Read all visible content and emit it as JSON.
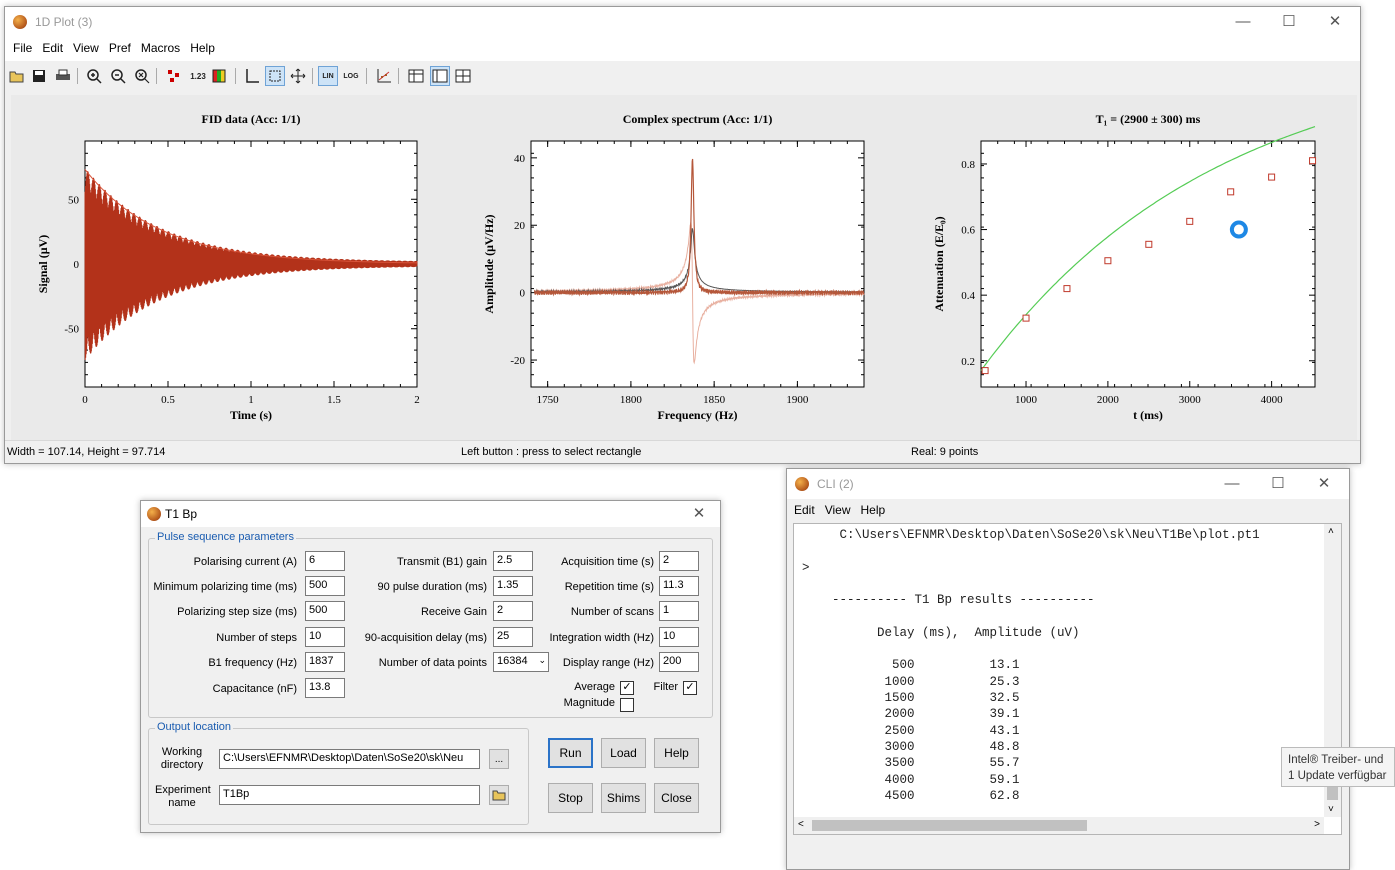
{
  "plot_window": {
    "title": "1D Plot (3)",
    "menu": [
      "File",
      "Edit",
      "View",
      "Pref",
      "Macros",
      "Help"
    ],
    "toolbar_icons": [
      "open-folder-icon",
      "save-icon",
      "print-icon",
      "zoom-in-icon",
      "zoom-out-icon",
      "zoom-reset-icon",
      "data-points-icon",
      "number-format-icon",
      "colorbar-icon",
      "axes-icon",
      "select-rectangle-icon",
      "move-cursor-icon",
      "lin-scale-icon",
      "log-scale-icon",
      "fit-icon",
      "single-plot-icon",
      "split-plot-icon",
      "add-plot-icon"
    ],
    "lin_label": "LIN",
    "log_label": "LOG",
    "num_label": "1.23",
    "status_left": "Width = 107.14, Height = 97.714",
    "status_mid": "Left button : press to select rectangle",
    "status_right": "Real: 9 points"
  },
  "chart_data": [
    {
      "type": "line",
      "title": "FID data (Acc: 1/1)",
      "xlabel": "Time (s)",
      "ylabel": "Signal (μV)",
      "xlim": [
        0,
        2
      ],
      "ylim": [
        -95,
        95
      ],
      "xticks": [
        "0",
        "0.5",
        "1",
        "1.5",
        "2"
      ],
      "yticks": [
        "50",
        "0",
        "-50"
      ],
      "series": [
        {
          "values_desc": "decaying oscillation",
          "envelope_start": 73,
          "decay_time_s": 0.45,
          "color": "#b3321a"
        },
        {
          "values_desc": "envelope fit",
          "start": 73,
          "decay_time_s": 0.45,
          "color": "#d9543a"
        }
      ]
    },
    {
      "type": "line",
      "title": "Complex spectrum (Acc: 1/1)",
      "xlabel": "Frequency (Hz)",
      "ylabel": "Amplitude (μV/Hz)",
      "xlim": [
        1740,
        1940
      ],
      "ylim": [
        -28,
        45
      ],
      "xticks": [
        "1750",
        "1800",
        "1850",
        "1900"
      ],
      "yticks": [
        "40",
        "20",
        "0",
        "-20"
      ],
      "peak": {
        "frequency": 1837,
        "real_max": 40,
        "imag_min": -21
      },
      "colors": {
        "real": "#b5573a",
        "imag": "#e8b0a0",
        "magnitude": "#555555"
      }
    },
    {
      "type": "scatter",
      "title": "T₁ = (2900 ± 300) ms",
      "xlabel": "t (ms)",
      "ylabel": "Attenuation (E/E₀)",
      "xlim": [
        450,
        4530
      ],
      "ylim": [
        0.12,
        0.87
      ],
      "xticks": [
        "1000",
        "2000",
        "3000",
        "4000"
      ],
      "yticks": [
        "0.8",
        "0.6",
        "0.4",
        "0.2"
      ],
      "x": [
        500,
        1000,
        1500,
        2000,
        2500,
        3000,
        3500,
        4000,
        4500
      ],
      "y": [
        0.17,
        0.33,
        0.42,
        0.505,
        0.555,
        0.625,
        0.715,
        0.76,
        0.81
      ],
      "fit": {
        "type": "1 - exp(-t/T1)",
        "T1": 2900,
        "color": "#55cc55"
      },
      "marker_color": "#c0392b",
      "cursor_marker": {
        "x": 3600,
        "y": 0.6,
        "color": "#1e88e5"
      }
    }
  ],
  "t1_dialog": {
    "title": "T1 Bp",
    "group_pulse": "Pulse sequence parameters",
    "col1": [
      {
        "label": "Polarising current (A)",
        "value": "6"
      },
      {
        "label": "Minimum polarizing time (ms)",
        "value": "500"
      },
      {
        "label": "Polarizing step size (ms)",
        "value": "500"
      },
      {
        "label": "Number of steps",
        "value": "10"
      },
      {
        "label": "B1 frequency (Hz)",
        "value": "1837"
      },
      {
        "label": "Capacitance (nF)",
        "value": "13.8"
      }
    ],
    "col2": [
      {
        "label": "Transmit (B1) gain",
        "value": "2.5"
      },
      {
        "label": "90 pulse duration (ms)",
        "value": "1.35"
      },
      {
        "label": "Receive Gain",
        "value": "2"
      },
      {
        "label": "90-acquisition delay (ms)",
        "value": "25"
      },
      {
        "label": "Number of data points",
        "value": "16384"
      }
    ],
    "col3": [
      {
        "label": "Acquisition time (s)",
        "value": "2"
      },
      {
        "label": "Repetition time (s)",
        "value": "11.3"
      },
      {
        "label": "Number of scans",
        "value": "1"
      },
      {
        "label": "Integration width (Hz)",
        "value": "10"
      },
      {
        "label": "Display range (Hz)",
        "value": "200"
      }
    ],
    "average_label": "Average",
    "filter_label": "Filter",
    "magnitude_label": "Magnitude",
    "check_mark": "✓",
    "group_output": "Output location",
    "working_dir_label": "Working directory",
    "working_dir_value": "C:\\Users\\EFNMR\\Desktop\\Daten\\SoSe20\\sk\\Neu",
    "experiment_label": "Experiment name",
    "experiment_value": "T1Bp",
    "browse_label": "...",
    "buttons": {
      "run": "Run",
      "load": "Load",
      "help": "Help",
      "stop": "Stop",
      "shims": "Shims",
      "close": "Close"
    }
  },
  "cli_window": {
    "title": "CLI (2)",
    "menu": [
      "Edit",
      "View",
      "Help"
    ],
    "lines": [
      "     C:\\Users\\EFNMR\\Desktop\\Daten\\SoSe20\\sk\\Neu\\T1Be\\plot.pt1",
      "",
      ">",
      "",
      "    ---------- T1 Bp results ----------",
      "",
      "          Delay (ms),  Amplitude (uV)",
      "",
      "            500          13.1",
      "           1000          25.3",
      "           1500          32.5",
      "           2000          39.1",
      "           2500          43.1",
      "           3000          48.8",
      "           3500          55.7",
      "           4000          59.1",
      "           4500          62.8"
    ]
  },
  "notification": {
    "line1": "Intel® Treiber- und",
    "line2": "1 Update verfügbar"
  }
}
